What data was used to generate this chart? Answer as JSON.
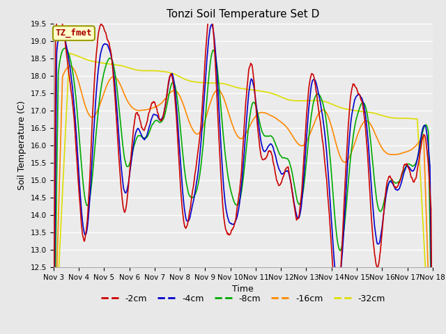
{
  "title": "Tonzi Soil Temperature Set D",
  "xlabel": "Time",
  "ylabel": "Soil Temperature (C)",
  "ylim": [
    12.5,
    19.5
  ],
  "x_tick_labels": [
    "Nov 3",
    "Nov 4",
    "Nov 5",
    "Nov 6",
    "Nov 7",
    "Nov 8",
    "Nov 9",
    "Nov 10",
    "Nov 11",
    "Nov 12",
    "Nov 13",
    "Nov 14",
    "Nov 15",
    "Nov 16",
    "Nov 17",
    "Nov 18"
  ],
  "legend_entries": [
    "-2cm",
    "-4cm",
    "-8cm",
    "-16cm",
    "-32cm"
  ],
  "line_colors": [
    "#cc0000",
    "#0000cc",
    "#00aa00",
    "#ff8800",
    "#dddd00"
  ],
  "annotation_text": "TZ_fmet",
  "annotation_fg": "#aa0000",
  "annotation_bg": "#ffffcc",
  "annotation_edge": "#999900",
  "fig_bg": "#e8e8e8",
  "ax_bg": "#ebebeb",
  "grid_color": "#ffffff",
  "title_fontsize": 11,
  "label_fontsize": 9,
  "tick_fontsize": 7.5,
  "legend_fontsize": 9
}
